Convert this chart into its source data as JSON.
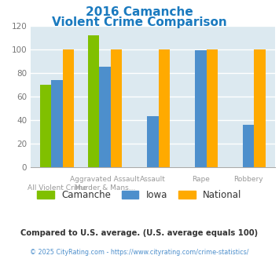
{
  "title_line1": "2016 Camanche",
  "title_line2": "Violent Crime Comparison",
  "title_color": "#1a7abf",
  "groups": [
    {
      "label": "Camanche",
      "color": "#80c000",
      "values": [
        70,
        112,
        null,
        null,
        null
      ]
    },
    {
      "label": "Iowa",
      "color": "#4d8fcc",
      "values": [
        74,
        85,
        43,
        99,
        36
      ]
    },
    {
      "label": "National",
      "color": "#ffaa00",
      "values": [
        100,
        100,
        100,
        100,
        100
      ]
    }
  ],
  "ylim": [
    0,
    120
  ],
  "yticks": [
    0,
    20,
    40,
    60,
    80,
    100,
    120
  ],
  "background_color": "#dce9f0",
  "grid_color": "#ffffff",
  "legend_labels": [
    "Camanche",
    "Iowa",
    "National"
  ],
  "legend_colors": [
    "#80c000",
    "#4d8fcc",
    "#ffaa00"
  ],
  "top_labels": [
    "",
    "Aggravated Assault",
    "Assault",
    "Rape",
    "Robbery"
  ],
  "bot_labels": [
    "All Violent Crime",
    "Murder & Mans...",
    "",
    "",
    ""
  ],
  "footnote1": "Compared to U.S. average. (U.S. average equals 100)",
  "footnote2": "© 2025 CityRating.com - https://www.cityrating.com/crime-statistics/",
  "footnote1_color": "#333333",
  "footnote2_color": "#4d8fcc"
}
